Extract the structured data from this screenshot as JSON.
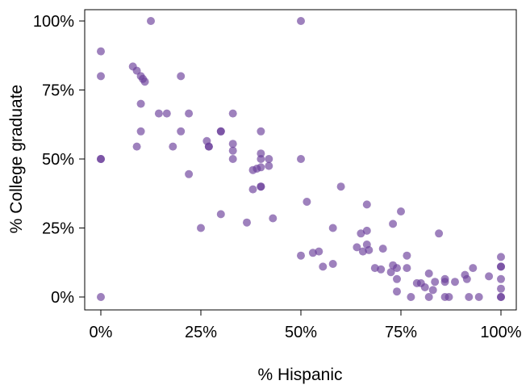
{
  "chart_data": {
    "type": "scatter",
    "title": "",
    "xlabel": "% Hispanic",
    "ylabel": "% College graduate",
    "xlim": [
      0,
      1
    ],
    "ylim": [
      0,
      1
    ],
    "x_ticks": [
      0,
      0.25,
      0.5,
      0.75,
      1.0
    ],
    "x_tick_labels": [
      "0%",
      "25%",
      "50%",
      "75%",
      "100%"
    ],
    "y_ticks": [
      0,
      0.25,
      0.5,
      0.75,
      1.0
    ],
    "y_tick_labels": [
      "0%",
      "25%",
      "50%",
      "75%",
      "100%"
    ],
    "grid": false,
    "point_color": "#6a3d9a",
    "point_opacity": 0.65,
    "points": [
      [
        0.0,
        0.89
      ],
      [
        0.0,
        0.8
      ],
      [
        0.0,
        0.5
      ],
      [
        0.0,
        0.5
      ],
      [
        0.0,
        0.0
      ],
      [
        0.08,
        0.835
      ],
      [
        0.09,
        0.82
      ],
      [
        0.1,
        0.8
      ],
      [
        0.105,
        0.79
      ],
      [
        0.11,
        0.78
      ],
      [
        0.125,
        1.0
      ],
      [
        0.1,
        0.7
      ],
      [
        0.1,
        0.6
      ],
      [
        0.09,
        0.545
      ],
      [
        0.145,
        0.665
      ],
      [
        0.165,
        0.665
      ],
      [
        0.18,
        0.545
      ],
      [
        0.2,
        0.8
      ],
      [
        0.2,
        0.6
      ],
      [
        0.22,
        0.665
      ],
      [
        0.22,
        0.445
      ],
      [
        0.25,
        0.25
      ],
      [
        0.265,
        0.565
      ],
      [
        0.27,
        0.545
      ],
      [
        0.27,
        0.545
      ],
      [
        0.3,
        0.6
      ],
      [
        0.3,
        0.6
      ],
      [
        0.3,
        0.3
      ],
      [
        0.33,
        0.665
      ],
      [
        0.33,
        0.555
      ],
      [
        0.33,
        0.53
      ],
      [
        0.33,
        0.5
      ],
      [
        0.365,
        0.27
      ],
      [
        0.38,
        0.46
      ],
      [
        0.38,
        0.39
      ],
      [
        0.39,
        0.465
      ],
      [
        0.4,
        0.6
      ],
      [
        0.4,
        0.52
      ],
      [
        0.4,
        0.5
      ],
      [
        0.4,
        0.47
      ],
      [
        0.4,
        0.4
      ],
      [
        0.4,
        0.4
      ],
      [
        0.42,
        0.5
      ],
      [
        0.42,
        0.475
      ],
      [
        0.43,
        0.285
      ],
      [
        0.5,
        1.0
      ],
      [
        0.5,
        0.5
      ],
      [
        0.5,
        0.15
      ],
      [
        0.515,
        0.345
      ],
      [
        0.53,
        0.16
      ],
      [
        0.545,
        0.165
      ],
      [
        0.555,
        0.11
      ],
      [
        0.58,
        0.25
      ],
      [
        0.58,
        0.12
      ],
      [
        0.6,
        0.4
      ],
      [
        0.64,
        0.18
      ],
      [
        0.65,
        0.23
      ],
      [
        0.655,
        0.165
      ],
      [
        0.665,
        0.335
      ],
      [
        0.665,
        0.24
      ],
      [
        0.665,
        0.19
      ],
      [
        0.67,
        0.17
      ],
      [
        0.685,
        0.105
      ],
      [
        0.7,
        0.1
      ],
      [
        0.705,
        0.175
      ],
      [
        0.725,
        0.09
      ],
      [
        0.73,
        0.265
      ],
      [
        0.73,
        0.115
      ],
      [
        0.74,
        0.105
      ],
      [
        0.74,
        0.065
      ],
      [
        0.74,
        0.02
      ],
      [
        0.75,
        0.31
      ],
      [
        0.765,
        0.15
      ],
      [
        0.765,
        0.105
      ],
      [
        0.775,
        0.0
      ],
      [
        0.79,
        0.05
      ],
      [
        0.8,
        0.05
      ],
      [
        0.81,
        0.035
      ],
      [
        0.82,
        0.085
      ],
      [
        0.82,
        0.0
      ],
      [
        0.83,
        0.025
      ],
      [
        0.835,
        0.055
      ],
      [
        0.845,
        0.23
      ],
      [
        0.86,
        0.065
      ],
      [
        0.86,
        0.055
      ],
      [
        0.86,
        0.0
      ],
      [
        0.87,
        0.0
      ],
      [
        0.885,
        0.055
      ],
      [
        0.91,
        0.08
      ],
      [
        0.915,
        0.065
      ],
      [
        0.92,
        0.0
      ],
      [
        0.93,
        0.105
      ],
      [
        0.945,
        0.0
      ],
      [
        0.97,
        0.075
      ],
      [
        1.0,
        0.145
      ],
      [
        1.0,
        0.11
      ],
      [
        1.0,
        0.11
      ],
      [
        1.0,
        0.065
      ],
      [
        1.0,
        0.03
      ],
      [
        1.0,
        0.0
      ],
      [
        1.0,
        0.0
      ]
    ]
  }
}
